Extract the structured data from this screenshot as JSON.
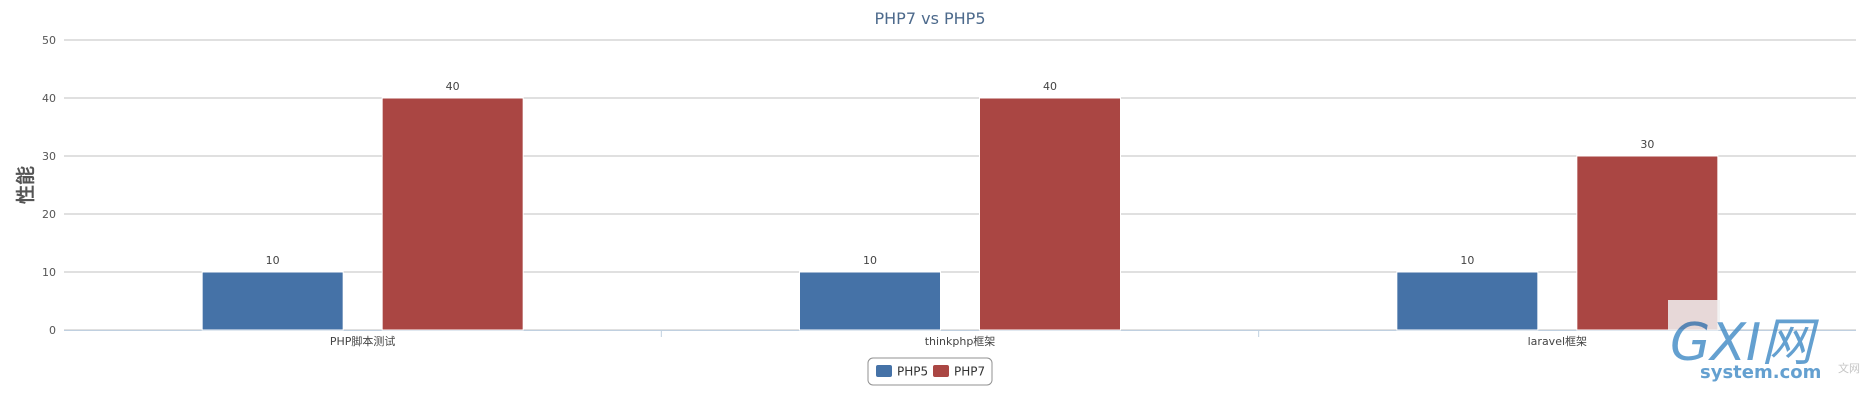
{
  "chart_data": {
    "type": "bar",
    "title": "PHP7 vs PHP5",
    "ylabel": "性能",
    "xlabel": "",
    "categories": [
      "PHP脚本测试",
      "thinkphp框架",
      "laravel框架"
    ],
    "series": [
      {
        "name": "PHP5",
        "values": [
          10,
          10,
          10
        ],
        "color": "#4572a7"
      },
      {
        "name": "PHP7",
        "values": [
          40,
          40,
          30
        ],
        "color": "#aa4643"
      }
    ],
    "ylim": [
      0,
      50
    ],
    "yticks": [
      0,
      10,
      20,
      30,
      40,
      50
    ],
    "grid": true,
    "legend_position": "bottom-center",
    "data_labels": true
  },
  "watermark": {
    "logo_text": "GXI网",
    "site_text": "system.com",
    "corner_text": "文网"
  }
}
